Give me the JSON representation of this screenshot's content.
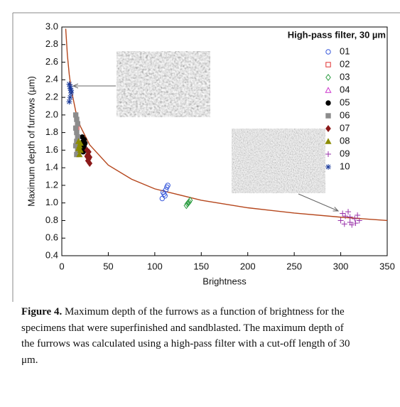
{
  "chart_data": {
    "type": "scatter",
    "legend_title": "High-pass filter, 30 µm",
    "x_label": "Brightness",
    "y_label": "Maximum depth of furrows (µm)",
    "xlim": [
      0,
      350
    ],
    "ylim": [
      0.4,
      3.0
    ],
    "xticks": [
      0,
      50,
      100,
      150,
      200,
      250,
      300,
      350
    ],
    "yticks": [
      {
        "value": 3,
        "label": "3.0"
      },
      2.8,
      2.6,
      2.4,
      2.2,
      {
        "value": 2,
        "label": "2.0"
      },
      1.8,
      1.6,
      1.4,
      1.2,
      {
        "value": 1,
        "label": "1.0"
      },
      0.8,
      0.6,
      0.4
    ],
    "legend": "upper right",
    "series": [
      {
        "name": "01",
        "color": "#3b5bdb",
        "marker": "circle",
        "filled": false,
        "x": [
          108,
          110,
          112,
          114,
          109,
          111,
          113
        ],
        "values": [
          1.05,
          1.1,
          1.15,
          1.2,
          1.12,
          1.08,
          1.18
        ]
      },
      {
        "name": "02",
        "color": "#e03131",
        "marker": "square",
        "filled": false,
        "x": [
          16,
          17
        ],
        "values": [
          1.85,
          1.9
        ]
      },
      {
        "name": "03",
        "color": "#2f9e44",
        "marker": "diamond",
        "filled": false,
        "x": [
          134,
          136,
          138,
          135,
          137
        ],
        "values": [
          0.97,
          1.0,
          1.03,
          0.99,
          1.01
        ]
      },
      {
        "name": "04",
        "color": "#cc33cc",
        "marker": "triangle",
        "filled": false,
        "x": [
          18,
          19
        ],
        "values": [
          1.6,
          1.65
        ]
      },
      {
        "name": "05",
        "color": "#000000",
        "marker": "circle",
        "filled": true,
        "x": [
          22,
          23,
          24,
          25,
          23,
          24,
          22,
          25
        ],
        "values": [
          1.75,
          1.7,
          1.65,
          1.6,
          1.58,
          1.72,
          1.62,
          1.68
        ]
      },
      {
        "name": "06",
        "color": "#8c8c8c",
        "marker": "square",
        "filled": true,
        "x": [
          15,
          16,
          17,
          15,
          16,
          17,
          16,
          15,
          17,
          16
        ],
        "values": [
          2.0,
          1.95,
          1.9,
          1.85,
          1.8,
          1.75,
          1.7,
          1.65,
          1.6,
          1.55
        ]
      },
      {
        "name": "07",
        "color": "#8b1a1a",
        "marker": "diamond",
        "filled": true,
        "x": [
          27,
          28,
          29,
          30,
          28,
          29,
          30,
          27
        ],
        "values": [
          1.6,
          1.55,
          1.5,
          1.45,
          1.48,
          1.58,
          1.52,
          1.53
        ]
      },
      {
        "name": "08",
        "color": "#8b8b00",
        "marker": "triangle",
        "filled": true,
        "x": [
          18,
          19,
          20,
          19,
          18,
          20
        ],
        "values": [
          1.7,
          1.65,
          1.6,
          1.55,
          1.62,
          1.68
        ]
      },
      {
        "name": "09",
        "color": "#9933aa",
        "marker": "plus",
        "filled": false,
        "x": [
          300,
          305,
          310,
          315,
          320,
          302,
          308,
          312,
          318,
          304,
          316,
          310
        ],
        "values": [
          0.8,
          0.85,
          0.78,
          0.82,
          0.8,
          0.88,
          0.9,
          0.75,
          0.86,
          0.76,
          0.77,
          0.84
        ]
      },
      {
        "name": "10",
        "color": "#1a3a9a",
        "marker": "star",
        "filled": false,
        "x": [
          8,
          9,
          10,
          9,
          8,
          10,
          9
        ],
        "values": [
          2.35,
          2.3,
          2.25,
          2.2,
          2.15,
          2.28,
          2.32
        ]
      }
    ],
    "fit": {
      "color": "#b5461c",
      "x": [
        4.2,
        6,
        8,
        10,
        15,
        20,
        30,
        50,
        75,
        100,
        150,
        200,
        250,
        300,
        350
      ],
      "values": [
        2.98,
        2.68,
        2.46,
        2.3,
        2.04,
        1.87,
        1.66,
        1.43,
        1.27,
        1.16,
        1.03,
        0.945,
        0.885,
        0.838,
        0.8
      ]
    }
  },
  "caption": {
    "label": "Figure 4.",
    "text": "Maximum depth of the furrows as a function of brightness for the specimens that were superfinished and sandblasted. The maximum depth of the furrows was calculated using a high-pass filter with a cut-off length of 30 μm."
  }
}
